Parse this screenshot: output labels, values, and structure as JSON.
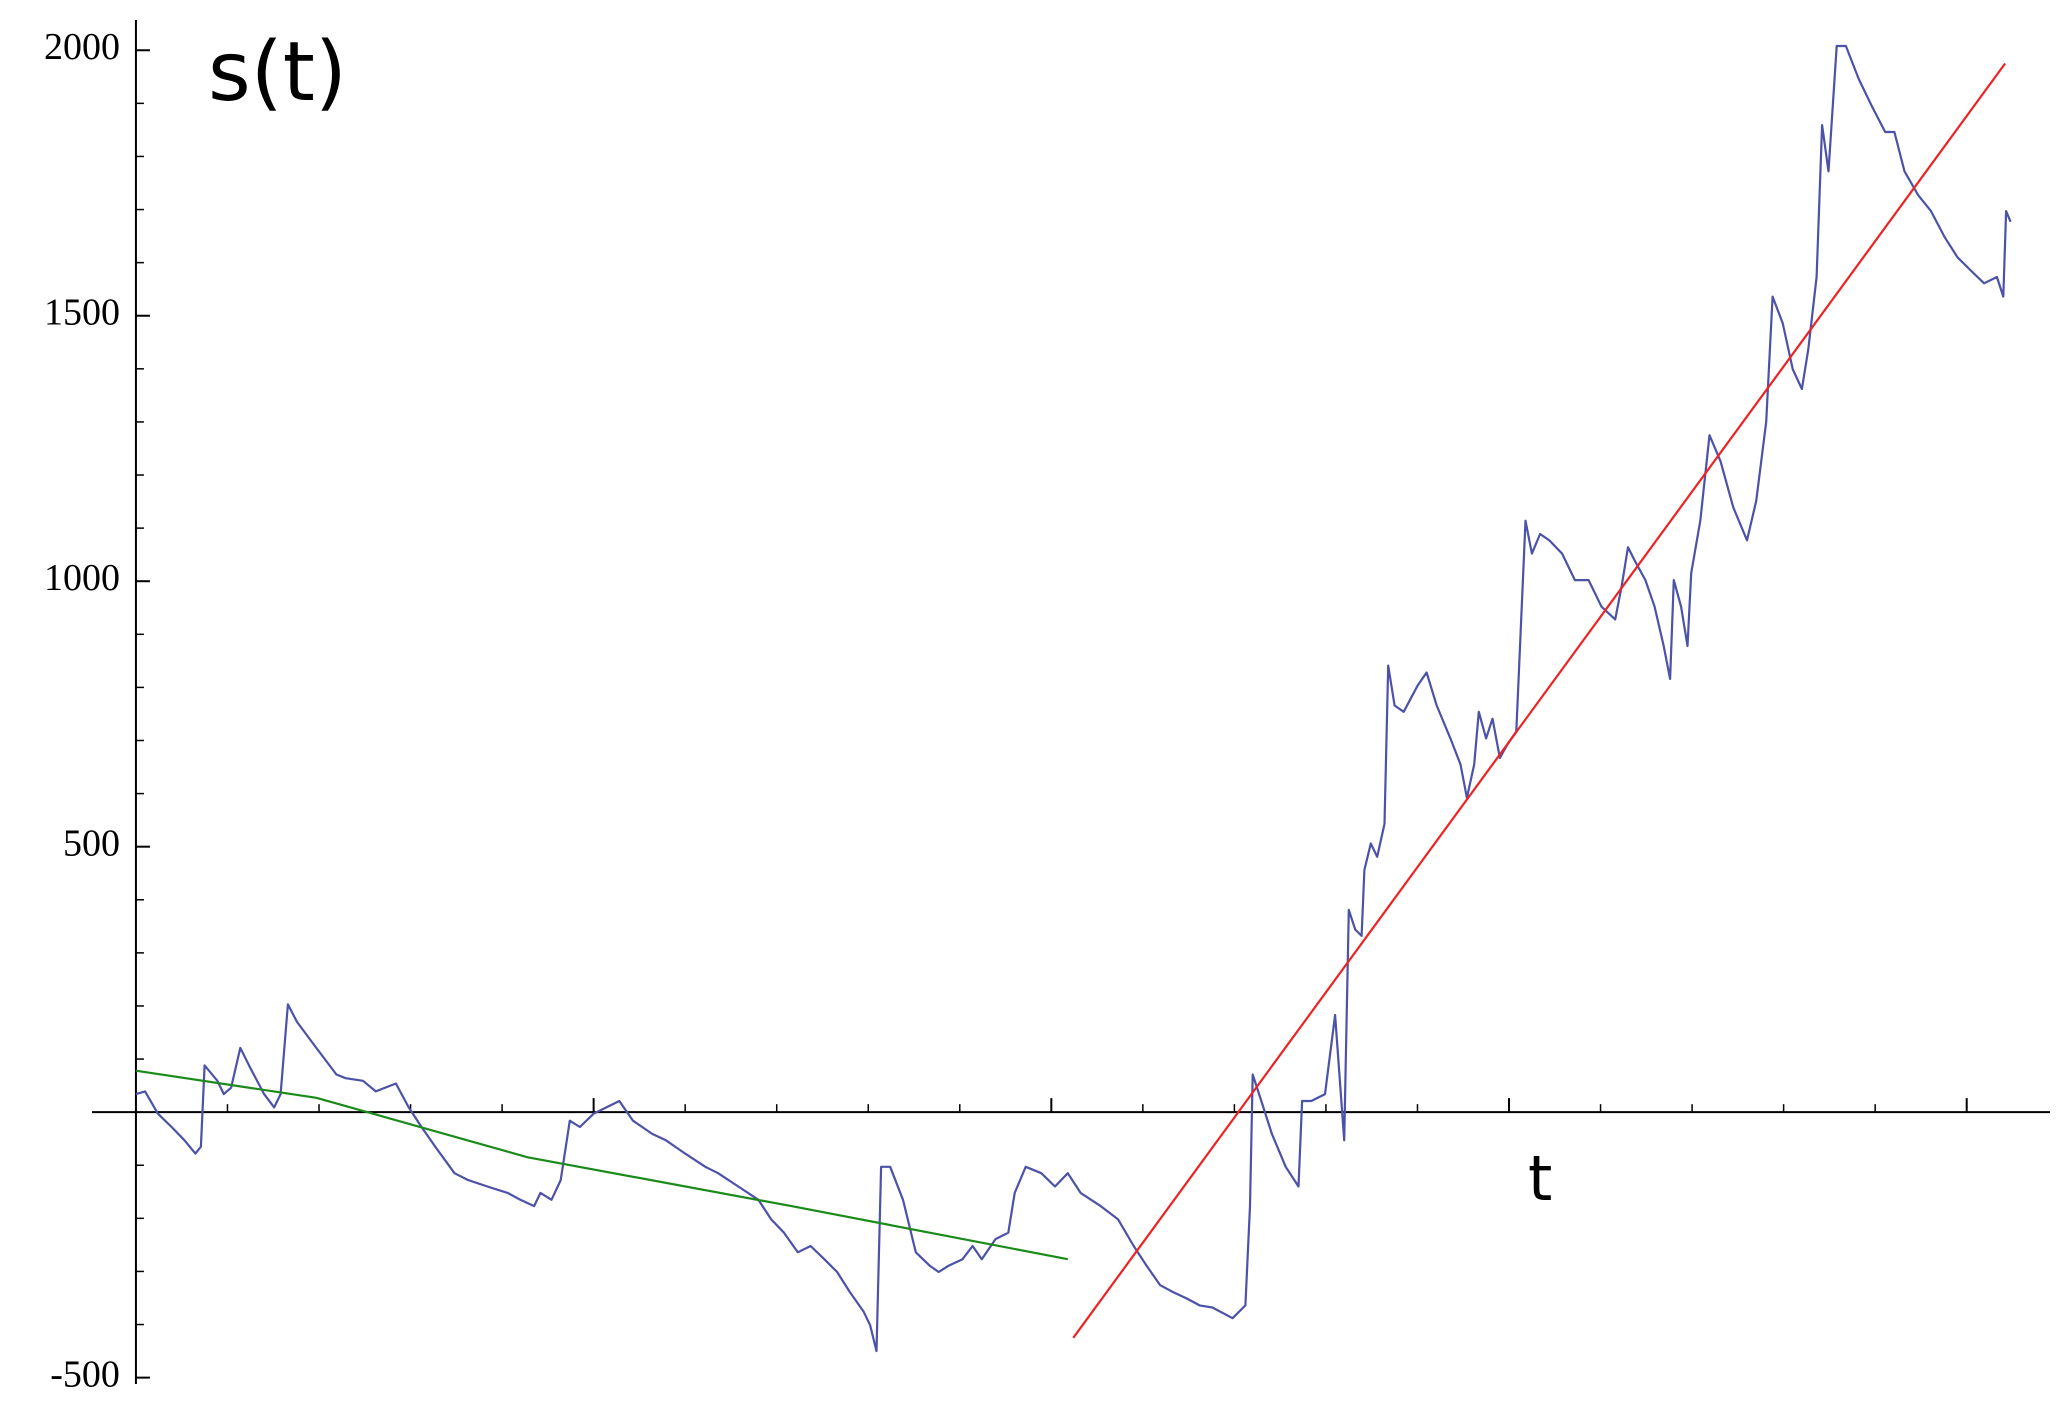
{
  "chart_data": {
    "type": "line",
    "ylabel": "s(t)",
    "xlabel": "t",
    "xlim": [
      -48,
      2091
    ],
    "ylim": [
      -512,
      2057
    ],
    "xticks": [
      500,
      1000,
      1500,
      2000
    ],
    "x_minor_ticks": [
      100,
      200,
      300,
      400,
      600,
      700,
      800,
      900,
      1100,
      1200,
      1300,
      1400,
      1600,
      1700,
      1800,
      1900
    ],
    "yticks": [
      -500,
      500,
      1000,
      1500,
      2000
    ],
    "y_minor_ticks": [
      -400,
      -300,
      -200,
      -100,
      0,
      100,
      200,
      300,
      400,
      600,
      700,
      800,
      900,
      1100,
      1200,
      1300,
      1400,
      1600,
      1700,
      1800,
      1900
    ],
    "series": [
      {
        "color": "#4b52a8",
        "x": [
          0,
          10,
          24,
          39,
          53,
          65,
          71,
          75,
          89,
          96,
          104,
          114,
          125,
          140,
          151,
          158,
          166,
          176,
          197,
          219,
          229,
          248,
          262,
          284,
          298,
          312,
          327,
          348,
          363,
          384,
          406,
          420,
          435,
          442,
          454,
          464,
          474,
          485,
          500,
          514,
          528,
          543,
          564,
          579,
          600,
          622,
          636,
          658,
          680,
          694,
          708,
          723,
          737,
          752,
          766,
          780,
          795,
          802,
          809,
          814,
          824,
          838,
          852,
          867,
          877,
          888,
          903,
          914,
          924,
          939,
          953,
          960,
          972,
          989,
          1004,
          1018,
          1032,
          1054,
          1073,
          1090,
          1104,
          1119,
          1133,
          1148,
          1162,
          1176,
          1198,
          1212,
          1217,
          1220,
          1227,
          1241,
          1256,
          1270,
          1274,
          1284,
          1299,
          1310,
          1320,
          1325,
          1332,
          1339,
          1342,
          1349,
          1356,
          1364,
          1368,
          1375,
          1385,
          1400,
          1410,
          1421,
          1436,
          1447,
          1454,
          1462,
          1467,
          1475,
          1482,
          1490,
          1498,
          1508,
          1518,
          1525,
          1534,
          1544,
          1558,
          1572,
          1587,
          1601,
          1616,
          1623,
          1630,
          1637,
          1649,
          1659,
          1669,
          1676,
          1680,
          1688,
          1695,
          1699,
          1709,
          1719,
          1731,
          1745,
          1760,
          1770,
          1781,
          1788,
          1799,
          1810,
          1820,
          1827,
          1836,
          1842,
          1849,
          1858,
          1868,
          1882,
          1896,
          1911,
          1921,
          1932,
          1947,
          1961,
          1976,
          1990,
          2004,
          2019,
          2033,
          2040,
          2043,
          2048
        ],
        "values": [
          34,
          39,
          -3,
          -28,
          -53,
          -78,
          -65,
          88,
          59,
          34,
          46,
          121,
          83,
          34,
          9,
          34,
          203,
          170,
          121,
          71,
          64,
          59,
          39,
          54,
          9,
          -28,
          -65,
          -115,
          -128,
          -140,
          -152,
          -165,
          -177,
          -152,
          -165,
          -128,
          -16,
          -28,
          -3,
          9,
          21,
          -16,
          -41,
          -53,
          -78,
          -103,
          -115,
          -140,
          -165,
          -202,
          -227,
          -264,
          -252,
          -277,
          -301,
          -339,
          -376,
          -401,
          -450,
          -103,
          -103,
          -165,
          -264,
          -289,
          -301,
          -289,
          -277,
          -252,
          -277,
          -239,
          -227,
          -152,
          -103,
          -115,
          -140,
          -115,
          -152,
          -177,
          -202,
          -252,
          -289,
          -326,
          -339,
          -351,
          -364,
          -368,
          -388,
          -364,
          -177,
          71,
          34,
          -41,
          -103,
          -140,
          21,
          21,
          34,
          183,
          -53,
          381,
          344,
          332,
          456,
          506,
          481,
          543,
          841,
          766,
          754,
          803,
          828,
          766,
          704,
          655,
          592,
          655,
          754,
          704,
          741,
          667,
          692,
          717,
          1114,
          1052,
          1089,
          1077,
          1052,
          1002,
          1002,
          952,
          928,
          990,
          1064,
          1040,
          1002,
          952,
          878,
          816,
          1002,
          952,
          878,
          1015,
          1114,
          1275,
          1226,
          1139,
          1077,
          1151,
          1300,
          1536,
          1486,
          1399,
          1362,
          1437,
          1573,
          1859,
          1772,
          2008,
          2008,
          1946,
          1896,
          1846,
          1846,
          1772,
          1727,
          1697,
          1648,
          1610,
          1586,
          1561,
          1573,
          1536,
          1697,
          1677
        ]
      },
      {
        "color": "#1a8a1a",
        "x": [
          0,
          197,
          428,
          716,
          1018
        ],
        "values": [
          78,
          27,
          -85,
          -177,
          -277
        ]
      },
      {
        "color": "#ee2222",
        "x": [
          1024,
          2042
        ],
        "values": [
          -425,
          1975
        ]
      }
    ]
  }
}
